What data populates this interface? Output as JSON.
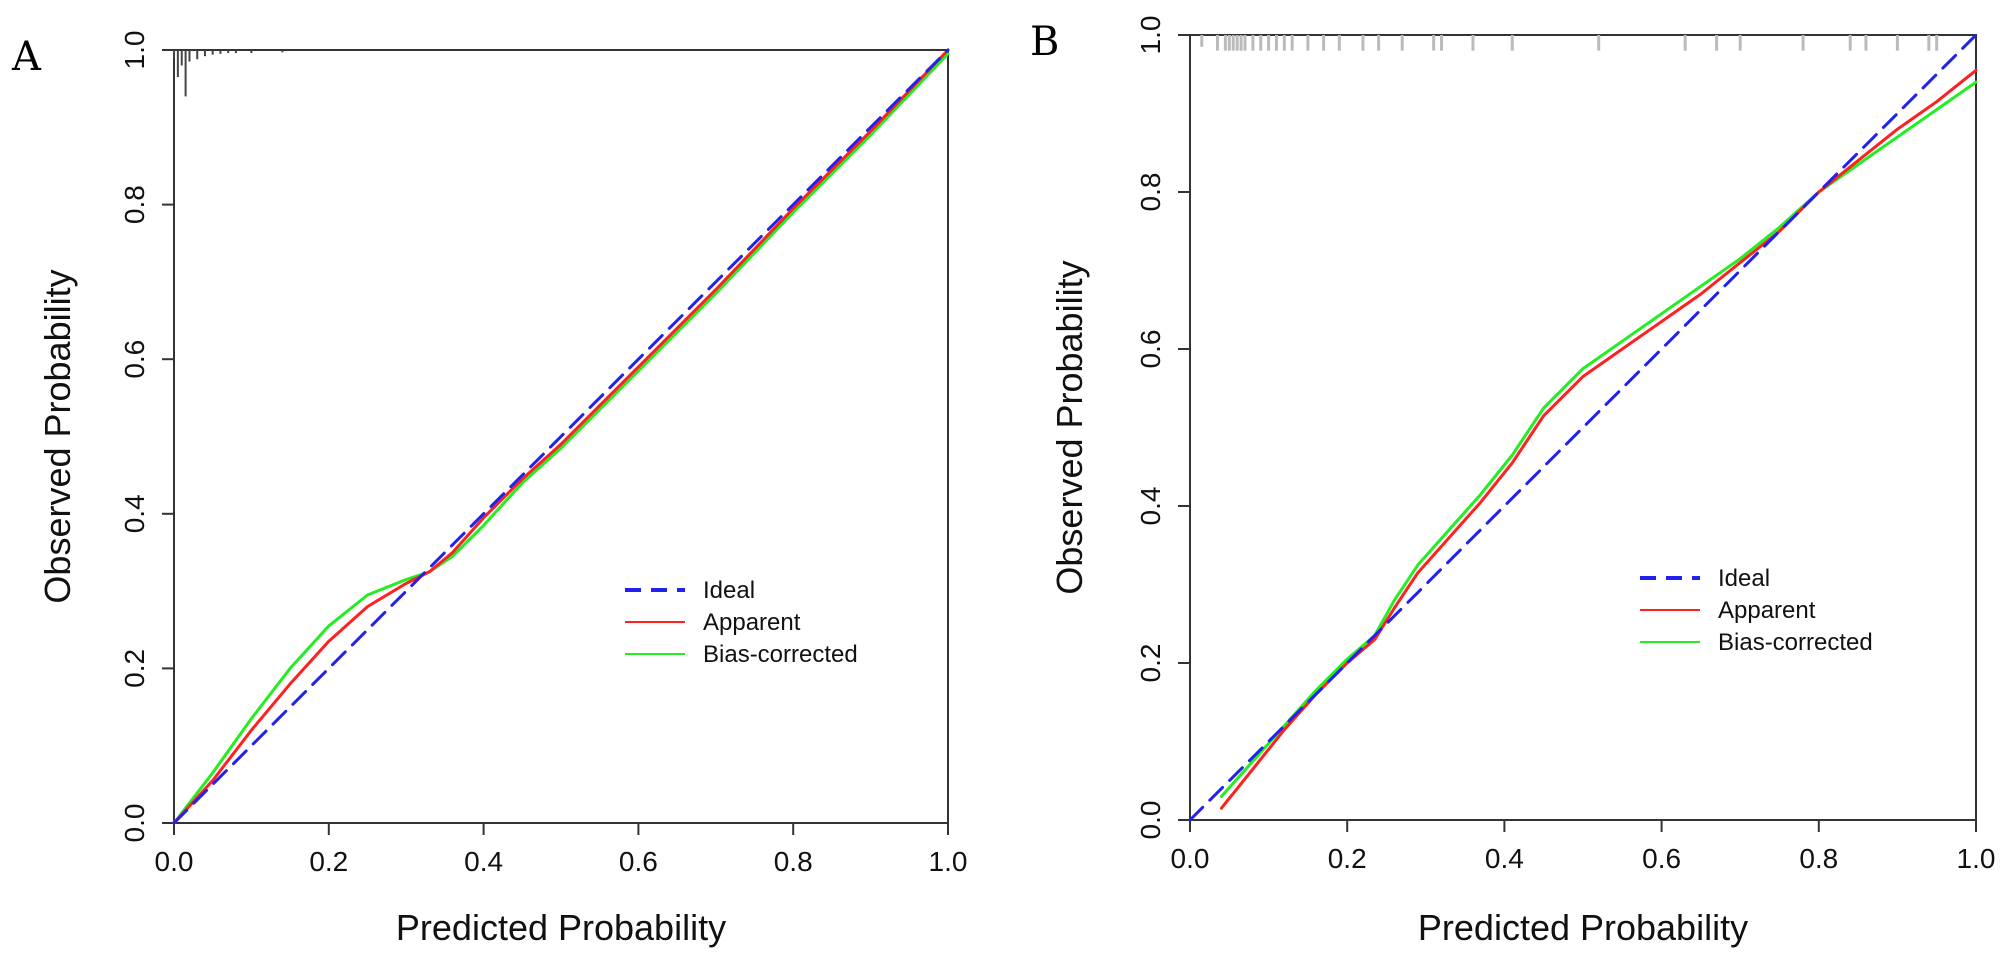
{
  "colors": {
    "ideal": "#2222ee",
    "apparent": "#ff2020",
    "bias_corrected": "#22ee22",
    "axis": "#333333",
    "rug": "#444444",
    "rug_light": "#bbbbbb"
  },
  "chart_data": [
    {
      "panel": "A",
      "type": "line",
      "xlabel": "Predicted Probability",
      "ylabel": "Observed Probability",
      "xlim": [
        0,
        1
      ],
      "ylim": [
        0,
        1
      ],
      "xticks": [
        "0.0",
        "0.2",
        "0.4",
        "0.6",
        "0.8",
        "1.0"
      ],
      "yticks": [
        "0.0",
        "0.2",
        "0.4",
        "0.6",
        "0.8",
        "1.0"
      ],
      "legend": {
        "position": "right-middle",
        "entries": [
          "Ideal",
          "Apparent",
          "Bias-corrected"
        ]
      },
      "rug": [
        {
          "x": 0.0,
          "len": 0.01
        },
        {
          "x": 0.005,
          "len": 0.035
        },
        {
          "x": 0.01,
          "len": 0.02
        },
        {
          "x": 0.015,
          "len": 0.06
        },
        {
          "x": 0.02,
          "len": 0.015
        },
        {
          "x": 0.03,
          "len": 0.012
        },
        {
          "x": 0.04,
          "len": 0.008
        },
        {
          "x": 0.05,
          "len": 0.006
        },
        {
          "x": 0.06,
          "len": 0.005
        },
        {
          "x": 0.07,
          "len": 0.004
        },
        {
          "x": 0.08,
          "len": 0.004
        },
        {
          "x": 0.1,
          "len": 0.004
        },
        {
          "x": 0.14,
          "len": 0.003
        }
      ],
      "series": [
        {
          "name": "Ideal",
          "style": "dashed",
          "x": [
            0,
            1
          ],
          "y": [
            0,
            1
          ]
        },
        {
          "name": "Apparent",
          "style": "solid",
          "x": [
            0.0,
            0.05,
            0.1,
            0.15,
            0.2,
            0.25,
            0.3,
            0.33,
            0.36,
            0.4,
            0.45,
            0.5,
            0.6,
            0.7,
            0.8,
            0.9,
            1.0
          ],
          "y": [
            0.0,
            0.055,
            0.12,
            0.18,
            0.235,
            0.28,
            0.31,
            0.325,
            0.35,
            0.395,
            0.445,
            0.49,
            0.59,
            0.69,
            0.795,
            0.895,
            1.0
          ]
        },
        {
          "name": "Bias-corrected",
          "style": "solid",
          "x": [
            0.0,
            0.05,
            0.1,
            0.15,
            0.2,
            0.25,
            0.3,
            0.33,
            0.36,
            0.4,
            0.45,
            0.5,
            0.6,
            0.7,
            0.8,
            0.9,
            1.0
          ],
          "y": [
            0.0,
            0.065,
            0.135,
            0.2,
            0.255,
            0.295,
            0.315,
            0.325,
            0.345,
            0.385,
            0.44,
            0.485,
            0.585,
            0.685,
            0.79,
            0.89,
            0.995
          ]
        }
      ]
    },
    {
      "panel": "B",
      "type": "line",
      "xlabel": "Predicted Probability",
      "ylabel": "Observed Probability",
      "xlim": [
        0,
        1
      ],
      "ylim": [
        0,
        1
      ],
      "xticks": [
        "0.0",
        "0.2",
        "0.4",
        "0.6",
        "0.8",
        "1.0"
      ],
      "yticks": [
        "0.0",
        "0.2",
        "0.4",
        "0.6",
        "0.8",
        "1.0"
      ],
      "legend": {
        "position": "right-middle",
        "entries": [
          "Ideal",
          "Apparent",
          "Bias-corrected"
        ]
      },
      "rug": [
        {
          "x": 0.015,
          "len": 0.015
        },
        {
          "x": 0.035,
          "len": 0.02
        },
        {
          "x": 0.045,
          "len": 0.02
        },
        {
          "x": 0.05,
          "len": 0.02
        },
        {
          "x": 0.055,
          "len": 0.02
        },
        {
          "x": 0.06,
          "len": 0.02
        },
        {
          "x": 0.065,
          "len": 0.02
        },
        {
          "x": 0.07,
          "len": 0.02
        },
        {
          "x": 0.08,
          "len": 0.02
        },
        {
          "x": 0.09,
          "len": 0.02
        },
        {
          "x": 0.1,
          "len": 0.02
        },
        {
          "x": 0.11,
          "len": 0.02
        },
        {
          "x": 0.12,
          "len": 0.02
        },
        {
          "x": 0.13,
          "len": 0.02
        },
        {
          "x": 0.15,
          "len": 0.02
        },
        {
          "x": 0.17,
          "len": 0.02
        },
        {
          "x": 0.19,
          "len": 0.02
        },
        {
          "x": 0.22,
          "len": 0.02
        },
        {
          "x": 0.24,
          "len": 0.02
        },
        {
          "x": 0.27,
          "len": 0.02
        },
        {
          "x": 0.31,
          "len": 0.02
        },
        {
          "x": 0.32,
          "len": 0.02
        },
        {
          "x": 0.36,
          "len": 0.02
        },
        {
          "x": 0.41,
          "len": 0.02
        },
        {
          "x": 0.52,
          "len": 0.02
        },
        {
          "x": 0.63,
          "len": 0.02
        },
        {
          "x": 0.67,
          "len": 0.02
        },
        {
          "x": 0.7,
          "len": 0.02
        },
        {
          "x": 0.78,
          "len": 0.02
        },
        {
          "x": 0.84,
          "len": 0.02
        },
        {
          "x": 0.86,
          "len": 0.02
        },
        {
          "x": 0.9,
          "len": 0.02
        },
        {
          "x": 0.94,
          "len": 0.02
        },
        {
          "x": 0.95,
          "len": 0.02
        }
      ],
      "series": [
        {
          "name": "Ideal",
          "style": "dashed",
          "x": [
            0,
            1
          ],
          "y": [
            0,
            1
          ]
        },
        {
          "name": "Apparent",
          "style": "solid",
          "x": [
            0.04,
            0.08,
            0.12,
            0.16,
            0.2,
            0.235,
            0.26,
            0.29,
            0.33,
            0.37,
            0.41,
            0.45,
            0.5,
            0.55,
            0.6,
            0.65,
            0.7,
            0.75,
            0.8,
            0.85,
            0.9,
            0.95,
            1.0
          ],
          "y": [
            0.015,
            0.065,
            0.115,
            0.16,
            0.2,
            0.23,
            0.27,
            0.315,
            0.36,
            0.405,
            0.455,
            0.515,
            0.565,
            0.6,
            0.635,
            0.67,
            0.71,
            0.75,
            0.8,
            0.84,
            0.88,
            0.915,
            0.955
          ]
        },
        {
          "name": "Bias-corrected",
          "style": "solid",
          "x": [
            0.04,
            0.08,
            0.12,
            0.16,
            0.2,
            0.235,
            0.26,
            0.29,
            0.33,
            0.37,
            0.41,
            0.45,
            0.5,
            0.55,
            0.6,
            0.65,
            0.7,
            0.75,
            0.8,
            0.85,
            0.9,
            0.95,
            1.0
          ],
          "y": [
            0.03,
            0.075,
            0.12,
            0.165,
            0.205,
            0.235,
            0.28,
            0.325,
            0.37,
            0.415,
            0.465,
            0.525,
            0.575,
            0.61,
            0.645,
            0.68,
            0.715,
            0.755,
            0.8,
            0.835,
            0.87,
            0.905,
            0.94
          ]
        }
      ]
    }
  ]
}
